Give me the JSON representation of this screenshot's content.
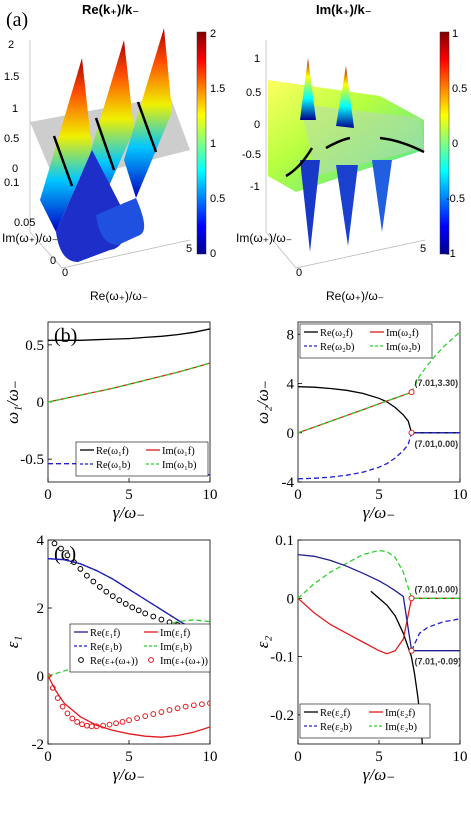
{
  "colors": {
    "black": "#000000",
    "red": "#e31a1c",
    "blue": "#1f1fd0",
    "green": "#2fcf2f",
    "navy": "#1f1f8f",
    "gray_plane": "#c8c8c8"
  },
  "panel_a": {
    "label": "(a)",
    "surfaces": [
      {
        "title": "Re(k₊)/k₋",
        "xlabel": "Re(ω₊)/ω₋",
        "ylabel": "Im(ω₊)/ω₋",
        "zticks": [
          "0",
          "0.5",
          "1",
          "1.5",
          "2"
        ],
        "yticks": [
          "0",
          "0.05",
          "0.1"
        ],
        "xticks": [
          "0",
          "5"
        ],
        "colorbar": {
          "min": 0,
          "max": 2,
          "ticks": [
            "0",
            "0.5",
            "1",
            "1.5",
            "2"
          ]
        }
      },
      {
        "title": "Im(k₊)/k₋",
        "xlabel": "Re(ω₊)/ω₋",
        "ylabel": "Im(ω₊)/ω₋",
        "zticks": [
          "-1",
          "-0.5",
          "0",
          "0.5",
          "1"
        ],
        "xticks": [
          "0",
          "5"
        ],
        "colorbar": {
          "min": -1,
          "max": 1,
          "ticks": [
            "-1",
            "-0.5",
            "0",
            "0.5",
            "1"
          ]
        }
      }
    ]
  },
  "chart_data": [
    {
      "id": "b-left",
      "type": "line",
      "panel_label": "(b)",
      "xlabel": "γ/ω₋",
      "ylabel": "ω₁/ω₋",
      "xlim": [
        0,
        10
      ],
      "ylim": [
        -0.7,
        0.7
      ],
      "xticks": [
        0,
        5,
        10
      ],
      "yticks": [
        -0.5,
        0,
        0.5
      ],
      "ytick_labels": [
        "-0.5",
        "0",
        "0.5"
      ],
      "legend_position": "bottom-right",
      "series": [
        {
          "name": "Re(ω₁f)",
          "color": "black",
          "dash": "solid",
          "x": [
            0,
            1,
            2,
            3,
            4,
            5,
            6,
            7,
            8,
            9,
            10
          ],
          "y": [
            0.54,
            0.54,
            0.54,
            0.545,
            0.55,
            0.555,
            0.565,
            0.575,
            0.59,
            0.61,
            0.64
          ]
        },
        {
          "name": "Im(ω₁f)",
          "color": "red",
          "dash": "solid",
          "x": [
            0,
            1,
            2,
            3,
            4,
            5,
            6,
            7,
            8,
            9,
            10
          ],
          "y": [
            0,
            0.03,
            0.06,
            0.09,
            0.12,
            0.155,
            0.19,
            0.225,
            0.26,
            0.3,
            0.34
          ]
        },
        {
          "name": "Re(ω₁b)",
          "color": "blue",
          "dash": "dashed",
          "x": [
            0,
            1,
            2,
            3,
            4,
            5,
            6,
            7,
            8,
            9,
            10
          ],
          "y": [
            -0.54,
            -0.54,
            -0.54,
            -0.545,
            -0.55,
            -0.555,
            -0.565,
            -0.575,
            -0.59,
            -0.61,
            -0.64
          ]
        },
        {
          "name": "Im(ω₁b)",
          "color": "green",
          "dash": "dashed",
          "x": [
            0,
            1,
            2,
            3,
            4,
            5,
            6,
            7,
            8,
            9,
            10
          ],
          "y": [
            0,
            0.03,
            0.06,
            0.09,
            0.12,
            0.155,
            0.19,
            0.225,
            0.26,
            0.3,
            0.34
          ]
        }
      ]
    },
    {
      "id": "b-right",
      "type": "line",
      "xlabel": "γ/ω₋",
      "ylabel": "ω₂/ω₋",
      "xlim": [
        0,
        10
      ],
      "ylim": [
        -4,
        9
      ],
      "xticks": [
        0,
        5,
        10
      ],
      "yticks": [
        -4,
        0,
        4,
        8
      ],
      "ytick_labels": [
        "-4",
        "0",
        "4",
        "8"
      ],
      "legend_position": "top-left",
      "annotations": [
        {
          "text": "(7.01,3.30)",
          "x": 7.01,
          "y": 3.3,
          "marker": true
        },
        {
          "text": "(7.01,0.00)",
          "x": 7.01,
          "y": 0.0,
          "marker": true
        }
      ],
      "series": [
        {
          "name": "Re(ω₂f)",
          "color": "black",
          "dash": "solid",
          "x": [
            0,
            1,
            2,
            3,
            4,
            5,
            5.5,
            6,
            6.5,
            6.8,
            7.01,
            8,
            9,
            10
          ],
          "y": [
            3.74,
            3.7,
            3.6,
            3.45,
            3.2,
            2.8,
            2.5,
            2.05,
            1.45,
            0.95,
            0,
            0,
            0,
            0
          ]
        },
        {
          "name": "Im(ω₂f)",
          "color": "red",
          "dash": "solid",
          "x": [
            0,
            1,
            2,
            3,
            4,
            5,
            6,
            7.01
          ],
          "y": [
            0,
            0.46,
            0.93,
            1.4,
            1.87,
            2.35,
            2.82,
            3.3
          ]
        },
        {
          "name": "Re(ω₂b)",
          "color": "blue",
          "dash": "dashed",
          "x": [
            0,
            1,
            2,
            3,
            4,
            5,
            5.5,
            6,
            6.5,
            6.8,
            7.01,
            8,
            9,
            10
          ],
          "y": [
            -3.74,
            -3.7,
            -3.6,
            -3.45,
            -3.2,
            -2.8,
            -2.5,
            -2.05,
            -1.45,
            -0.95,
            0,
            0,
            0,
            0
          ]
        },
        {
          "name": "Im(ω₂b)",
          "color": "green",
          "dash": "dashed",
          "x": [
            0,
            1,
            2,
            3,
            4,
            5,
            6,
            7.01,
            7.5,
            8,
            8.5,
            9,
            9.5,
            10
          ],
          "y": [
            0,
            0.46,
            0.93,
            1.4,
            1.87,
            2.35,
            2.82,
            3.3,
            4.6,
            5.5,
            6.3,
            7.0,
            7.6,
            8.2
          ]
        }
      ]
    },
    {
      "id": "c-left",
      "type": "line",
      "panel_label": "(c)",
      "xlabel": "γ/ω₋",
      "ylabel": "ε₁",
      "xlim": [
        0,
        10
      ],
      "ylim": [
        -2,
        4
      ],
      "xticks": [
        0,
        5,
        10
      ],
      "yticks": [
        -2,
        0,
        2,
        4
      ],
      "ytick_labels": [
        "-2",
        "0",
        "2",
        "4"
      ],
      "legend_position": "bottom",
      "series": [
        {
          "name": "Re(ε₁f)",
          "color": "navy",
          "dash": "solid",
          "x": [
            0,
            1,
            2,
            3,
            4,
            5,
            6,
            7,
            8,
            9,
            10
          ],
          "y": [
            3.45,
            3.42,
            3.3,
            3.1,
            2.85,
            2.55,
            2.25,
            1.95,
            1.65,
            1.35,
            1.1
          ]
        },
        {
          "name": "Im(ε₁f)",
          "color": "red",
          "dash": "solid",
          "x": [
            0,
            0.5,
            1,
            2,
            3,
            4,
            5,
            6,
            7,
            8,
            9,
            10
          ],
          "y": [
            0,
            -0.45,
            -0.8,
            -1.2,
            -1.45,
            -1.6,
            -1.7,
            -1.77,
            -1.8,
            -1.75,
            -1.65,
            -1.5
          ]
        },
        {
          "name": "Re(ε₁b)",
          "color": "blue",
          "dash": "dashed",
          "x": [
            0,
            1,
            2,
            3,
            4,
            5,
            6,
            7,
            8,
            9,
            10
          ],
          "y": [
            3.45,
            3.42,
            3.3,
            3.1,
            2.85,
            2.55,
            2.25,
            1.95,
            1.65,
            1.35,
            1.1
          ]
        },
        {
          "name": "Im(ε₁b)",
          "color": "green",
          "dash": "dashed",
          "x": [
            0,
            1,
            2,
            3,
            4,
            5,
            6,
            7,
            8,
            9,
            10
          ],
          "y": [
            0,
            0.15,
            0.3,
            0.5,
            0.75,
            1.0,
            1.25,
            1.45,
            1.6,
            1.65,
            1.6
          ]
        },
        {
          "name": "Re(ε₊(ω₊))",
          "color": "black",
          "marker": "circle",
          "x": [
            0.4,
            0.8,
            1.2,
            1.6,
            2,
            2.4,
            2.8,
            3.2,
            3.6,
            4,
            4.4,
            4.8,
            5.2,
            5.6,
            6,
            6.5,
            7,
            7.5,
            8,
            8.5,
            9,
            9.5,
            10
          ],
          "y": [
            3.9,
            3.75,
            3.55,
            3.35,
            3.15,
            2.95,
            2.78,
            2.62,
            2.48,
            2.35,
            2.23,
            2.12,
            2.02,
            1.93,
            1.84,
            1.75,
            1.66,
            1.58,
            1.5,
            1.43,
            1.36,
            1.3,
            1.24
          ]
        },
        {
          "name": "Im(ε₊(ω₊))",
          "color": "red",
          "marker": "circle",
          "x": [
            0,
            0.3,
            0.6,
            0.9,
            1.2,
            1.5,
            1.8,
            2.1,
            2.4,
            2.7,
            3,
            3.4,
            3.8,
            4.2,
            4.6,
            5,
            5.5,
            6,
            6.5,
            7,
            7.5,
            8,
            8.5,
            9,
            9.5,
            10
          ],
          "y": [
            0,
            -0.35,
            -0.65,
            -0.9,
            -1.1,
            -1.25,
            -1.35,
            -1.42,
            -1.46,
            -1.48,
            -1.48,
            -1.46,
            -1.43,
            -1.39,
            -1.35,
            -1.3,
            -1.24,
            -1.18,
            -1.12,
            -1.06,
            -1.0,
            -0.95,
            -0.9,
            -0.86,
            -0.83,
            -0.8
          ]
        }
      ],
      "legend_entries": [
        "Re(ε₁f)",
        "Im(ε₁f)",
        "Re(ε₁b)",
        "Im(ε₁b)",
        "Re(ε₊(ω₊))",
        "Im(ε₊(ω₊))"
      ]
    },
    {
      "id": "c-right",
      "type": "line",
      "xlabel": "γ/ω₋",
      "ylabel": "ε₂",
      "xlim": [
        0,
        10
      ],
      "ylim": [
        -0.25,
        0.1
      ],
      "xticks": [
        0,
        5,
        10
      ],
      "yticks": [
        -0.2,
        -0.1,
        0,
        0.1
      ],
      "ytick_labels": [
        "-0.2",
        "-0.1",
        "0",
        "0.1"
      ],
      "legend_position": "bottom-left",
      "annotations": [
        {
          "text": "(7.01,0.00)",
          "x": 7.01,
          "y": 0.0,
          "marker": true
        },
        {
          "text": "(7.01,-0.09)",
          "x": 7.01,
          "y": -0.09,
          "marker": true
        }
      ],
      "series": [
        {
          "name": "Re(ε₂f)",
          "color": "black",
          "dash": "solid",
          "x": [
            4.5,
            5,
            5.5,
            6,
            6.5,
            7,
            7.2,
            7.4,
            7.6,
            7.7
          ],
          "y": [
            0.012,
            0.0,
            -0.012,
            -0.03,
            -0.06,
            -0.1,
            -0.13,
            -0.17,
            -0.22,
            -0.26
          ]
        },
        {
          "name": "Im(ε₂f)",
          "color": "red",
          "dash": "solid",
          "x": [
            0,
            1,
            2,
            3,
            4,
            5,
            5.5,
            6,
            6.5,
            7.01,
            7.5,
            8,
            9,
            10
          ],
          "y": [
            0,
            -0.025,
            -0.045,
            -0.06,
            -0.075,
            -0.09,
            -0.095,
            -0.09,
            -0.07,
            0,
            0,
            0,
            0,
            0
          ]
        },
        {
          "name": "Re(ε₂b)",
          "color": "blue",
          "dash": "dashed",
          "x": [
            7.01,
            7.5,
            8,
            8.5,
            9,
            9.5,
            10
          ],
          "y": [
            -0.09,
            -0.06,
            -0.05,
            -0.045,
            -0.04,
            -0.038,
            -0.035
          ]
        },
        {
          "name": "Im(ε₂b)",
          "color": "green",
          "dash": "dashed",
          "x": [
            0,
            1,
            2,
            3,
            4,
            5,
            5.5,
            6,
            6.5,
            7.01,
            7.5,
            8,
            9,
            10
          ],
          "y": [
            0,
            0.025,
            0.045,
            0.06,
            0.075,
            0.082,
            0.08,
            0.07,
            0.045,
            0,
            0,
            0,
            0,
            0
          ]
        },
        {
          "name": "Re(ε₂f) navy",
          "legend": false,
          "color": "navy",
          "dash": "solid",
          "x": [
            0,
            1,
            2,
            3,
            4,
            5,
            5.5,
            6,
            6.5,
            7.01,
            7.5,
            8,
            9,
            10
          ],
          "y": [
            0.075,
            0.072,
            0.065,
            0.055,
            0.043,
            0.03,
            0.022,
            0.013,
            0.003,
            -0.09,
            -0.09,
            -0.09,
            -0.09,
            -0.09
          ]
        }
      ],
      "legend_entries": [
        "Re(ε₂f)",
        "Im(ε₂f)",
        "Re(ε₂b)",
        "Im(ε₂b)"
      ]
    }
  ]
}
